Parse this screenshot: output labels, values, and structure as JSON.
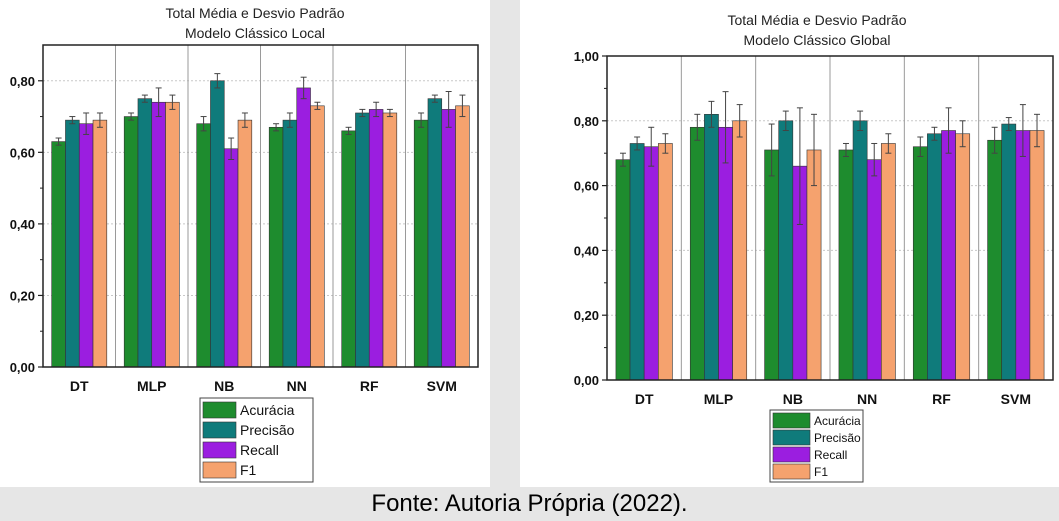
{
  "caption": "Fonte: Autoria Própria (2022).",
  "colors": {
    "Acurácia": "#1e8c2e",
    "Precisão": "#0f7b7b",
    "Recall": "#9b1ee0",
    "F1": "#f5a26e"
  },
  "chart_data": [
    {
      "type": "bar",
      "title": "Total Média e Desvio Padrão",
      "subtitle": "Modelo Clássico Local",
      "categories": [
        "DT",
        "MLP",
        "NB",
        "NN",
        "RF",
        "SVM"
      ],
      "ylim": [
        0,
        0.9
      ],
      "yticks": [
        0.0,
        0.2,
        0.4,
        0.6,
        0.8
      ],
      "ytick_labels": [
        "0,00",
        "0,20",
        "0,40",
        "0,60",
        "0,80"
      ],
      "grid": true,
      "legend_position": "bottom",
      "series": [
        {
          "name": "Acurácia",
          "values": [
            0.63,
            0.7,
            0.68,
            0.67,
            0.66,
            0.69
          ],
          "errors": [
            0.01,
            0.01,
            0.02,
            0.01,
            0.01,
            0.02
          ]
        },
        {
          "name": "Precisão",
          "values": [
            0.69,
            0.75,
            0.8,
            0.69,
            0.71,
            0.75
          ],
          "errors": [
            0.01,
            0.01,
            0.02,
            0.02,
            0.01,
            0.01
          ]
        },
        {
          "name": "Recall",
          "values": [
            0.68,
            0.74,
            0.61,
            0.78,
            0.72,
            0.72
          ],
          "errors": [
            0.03,
            0.04,
            0.03,
            0.03,
            0.02,
            0.05
          ]
        },
        {
          "name": "F1",
          "values": [
            0.69,
            0.74,
            0.69,
            0.73,
            0.71,
            0.73
          ],
          "errors": [
            0.02,
            0.02,
            0.02,
            0.01,
            0.01,
            0.03
          ]
        }
      ]
    },
    {
      "type": "bar",
      "title": "Total Média e Desvio Padrão",
      "subtitle": "Modelo Clássico Global",
      "categories": [
        "DT",
        "MLP",
        "NB",
        "NN",
        "RF",
        "SVM"
      ],
      "ylim": [
        0,
        1.0
      ],
      "yticks": [
        0.0,
        0.2,
        0.4,
        0.6,
        0.8,
        1.0
      ],
      "ytick_labels": [
        "0,00",
        "0,20",
        "0,40",
        "0,60",
        "0,80",
        "1,00"
      ],
      "grid": true,
      "legend_position": "bottom",
      "series": [
        {
          "name": "Acurácia",
          "values": [
            0.68,
            0.78,
            0.71,
            0.71,
            0.72,
            0.74
          ],
          "errors": [
            0.02,
            0.04,
            0.08,
            0.02,
            0.03,
            0.04
          ]
        },
        {
          "name": "Precisão",
          "values": [
            0.73,
            0.82,
            0.8,
            0.8,
            0.76,
            0.79
          ],
          "errors": [
            0.02,
            0.04,
            0.03,
            0.03,
            0.02,
            0.02
          ]
        },
        {
          "name": "Recall",
          "values": [
            0.72,
            0.78,
            0.66,
            0.68,
            0.77,
            0.77
          ],
          "errors": [
            0.06,
            0.11,
            0.18,
            0.05,
            0.07,
            0.08
          ]
        },
        {
          "name": "F1",
          "values": [
            0.73,
            0.8,
            0.71,
            0.73,
            0.76,
            0.77
          ],
          "errors": [
            0.03,
            0.05,
            0.11,
            0.03,
            0.04,
            0.05
          ]
        }
      ]
    }
  ]
}
